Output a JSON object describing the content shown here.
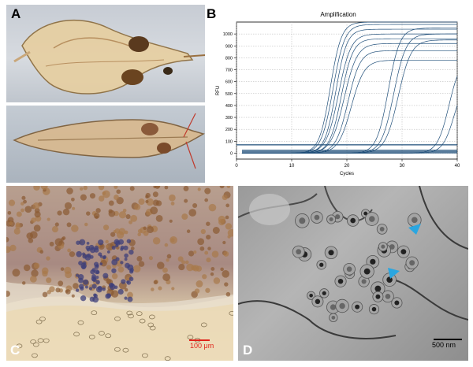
{
  "figure": {
    "panels": {
      "a": {
        "label": "A"
      },
      "b": {
        "label": "B"
      },
      "c": {
        "label": "C",
        "scale_bar": "100 μm"
      },
      "d": {
        "label": "D",
        "scale_bar": "500 nm"
      }
    }
  },
  "chart_data": {
    "type": "line",
    "title": "Amplification",
    "xlabel": "Cycles",
    "ylabel": "RFU",
    "xlim": [
      0,
      40
    ],
    "ylim": [
      -50,
      1100
    ],
    "xticks": [
      "0",
      "10",
      "20",
      "30",
      "40"
    ],
    "yticks": [
      "0",
      "100",
      "200",
      "300",
      "400",
      "500",
      "600",
      "700",
      "800",
      "900",
      "1000"
    ],
    "grid": true,
    "threshold": 70,
    "series_color": "#1f4e79",
    "series": [
      {
        "plateau": 1100,
        "midpoint": 17.0,
        "slope": 1.0
      },
      {
        "plateau": 1080,
        "midpoint": 17.5,
        "slope": 0.95
      },
      {
        "plateau": 1040,
        "midpoint": 18.0,
        "slope": 1.0
      },
      {
        "plateau": 1000,
        "midpoint": 18.5,
        "slope": 0.9
      },
      {
        "plateau": 960,
        "midpoint": 19.0,
        "slope": 0.95
      },
      {
        "plateau": 920,
        "midpoint": 19.5,
        "slope": 0.85
      },
      {
        "plateau": 860,
        "midpoint": 20.2,
        "slope": 0.9
      },
      {
        "plateau": 780,
        "midpoint": 20.8,
        "slope": 0.85
      },
      {
        "plateau": 1050,
        "midpoint": 27.5,
        "slope": 0.95
      },
      {
        "plateau": 1000,
        "midpoint": 28.5,
        "slope": 0.9
      },
      {
        "plateau": 950,
        "midpoint": 29.3,
        "slope": 0.85
      },
      {
        "plateau": 800,
        "midpoint": 38.5,
        "slope": 0.95
      },
      {
        "plateau": 650,
        "midpoint": 39.5,
        "slope": 0.95
      }
    ],
    "flat_series": [
      {
        "y": 25
      },
      {
        "y": 18
      },
      {
        "y": 12
      },
      {
        "y": 6
      },
      {
        "y": 0
      }
    ]
  }
}
